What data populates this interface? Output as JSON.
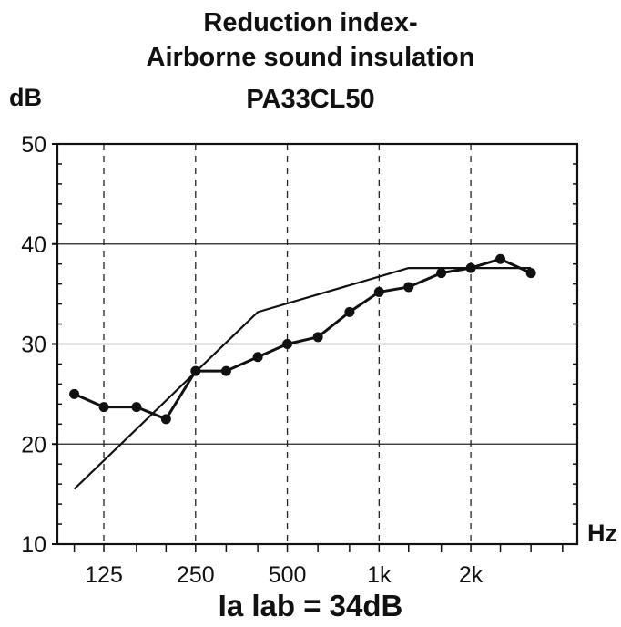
{
  "chart_data": {
    "type": "line",
    "title": [
      "Reduction index-",
      "Airborne sound insulation",
      "PA33CL50"
    ],
    "ylabel": "dB",
    "xlabel": "Hz",
    "ylim": [
      10,
      50
    ],
    "yticks": [
      10,
      20,
      30,
      40,
      50
    ],
    "y_gridlines": [
      20,
      30,
      40
    ],
    "x_scale": "log",
    "xlim": [
      88,
      4470
    ],
    "xticks": [
      {
        "value": 125,
        "label": "125"
      },
      {
        "value": 250,
        "label": "250"
      },
      {
        "value": 500,
        "label": "500"
      },
      {
        "value": 1000,
        "label": "1k"
      },
      {
        "value": 2000,
        "label": "2k"
      }
    ],
    "x_gridlines_dashed": [
      125,
      250,
      500,
      1000,
      2000
    ],
    "series": [
      {
        "marker": "circle",
        "x": [
          100,
          125,
          160,
          200,
          250,
          315,
          400,
          500,
          630,
          800,
          1000,
          1250,
          1600,
          2000,
          2500,
          3150
        ],
        "y": [
          25,
          23.7,
          23.7,
          22.5,
          27.3,
          27.3,
          28.7,
          30.0,
          30.7,
          33.2,
          35.2,
          35.7,
          37.1,
          37.6,
          38.5,
          37.1
        ]
      },
      {
        "marker": "none",
        "x": [
          100,
          400,
          1250,
          3150
        ],
        "y": [
          15.5,
          33.2,
          37.6,
          37.6
        ]
      }
    ],
    "annotation": "Ia lab = 34dB"
  }
}
